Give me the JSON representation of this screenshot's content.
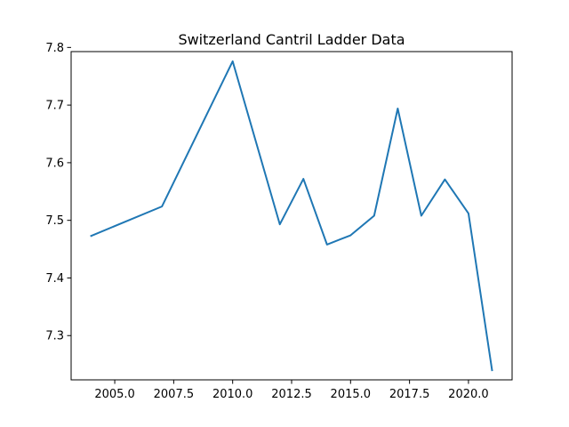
{
  "chart_data": {
    "type": "line",
    "title": "Switzerland Cantril Ladder Data",
    "xlabel": "",
    "ylabel": "",
    "x": [
      2004,
      2007,
      2010,
      2012,
      2013,
      2014,
      2015,
      2016,
      2017,
      2018,
      2019,
      2020,
      2021
    ],
    "series": [
      {
        "values": [
          7.473,
          7.524,
          7.776,
          7.493,
          7.572,
          7.458,
          7.474,
          7.508,
          7.694,
          7.508,
          7.571,
          7.512,
          7.24
        ],
        "color": "#1f77b4"
      }
    ],
    "xlim": [
      2003.15,
      2021.85
    ],
    "ylim": [
      7.2232,
      7.7928
    ],
    "xticks": [
      2005.0,
      2007.5,
      2010.0,
      2012.5,
      2015.0,
      2017.5,
      2020.0
    ],
    "xtick_labels": [
      "2005.0",
      "2007.5",
      "2010.0",
      "2012.5",
      "2015.0",
      "2017.5",
      "2020.0"
    ],
    "yticks": [
      7.3,
      7.4,
      7.5,
      7.6,
      7.7,
      7.8
    ],
    "ytick_labels": [
      "7.3",
      "7.4",
      "7.5",
      "7.6",
      "7.7",
      "7.8"
    ],
    "grid": false,
    "legend": "none"
  }
}
